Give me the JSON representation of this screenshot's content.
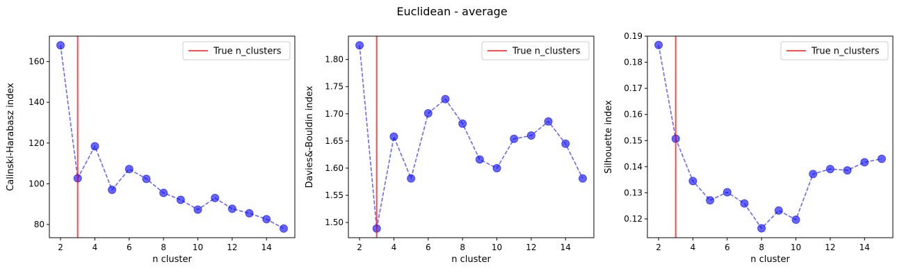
{
  "figure": {
    "suptitle": "Euclidean - average"
  },
  "colors": {
    "series": "#0000ff",
    "truth": "#ff0000"
  },
  "chart_data": [
    {
      "type": "line",
      "xlabel": "n cluster",
      "ylabel": "Calinski-Harabasz index",
      "xlim": [
        1.35,
        15.65
      ],
      "ylim": [
        73.5,
        172.5
      ],
      "xticks": [
        2,
        4,
        6,
        8,
        10,
        12,
        14
      ],
      "yticks": [
        80,
        100,
        120,
        140,
        160
      ],
      "x": [
        2,
        3,
        4,
        5,
        6,
        7,
        8,
        9,
        10,
        11,
        12,
        13,
        14,
        15
      ],
      "values": [
        168.0,
        102.7,
        118.4,
        97.0,
        107.2,
        102.4,
        95.5,
        92.1,
        87.3,
        93.0,
        87.7,
        85.5,
        82.6,
        78.0
      ],
      "vline": {
        "x": 3,
        "label": "True n_clusters"
      },
      "legend": "top-right",
      "grid": false
    },
    {
      "type": "line",
      "xlabel": "n cluster",
      "ylabel": "Davies&-Bouldin index",
      "xlim": [
        1.35,
        15.65
      ],
      "ylim": [
        1.472,
        1.843
      ],
      "xticks": [
        2,
        4,
        6,
        8,
        10,
        12,
        14
      ],
      "yticks": [
        1.5,
        1.55,
        1.6,
        1.65,
        1.7,
        1.75,
        1.8
      ],
      "x": [
        2,
        3,
        4,
        5,
        6,
        7,
        8,
        9,
        10,
        11,
        12,
        13,
        14,
        15
      ],
      "values": [
        1.826,
        1.489,
        1.658,
        1.581,
        1.701,
        1.727,
        1.682,
        1.616,
        1.6,
        1.654,
        1.66,
        1.686,
        1.645,
        1.581
      ],
      "vline": {
        "x": 3,
        "label": "True n_clusters"
      },
      "legend": "top-right",
      "grid": false
    },
    {
      "type": "line",
      "xlabel": "n cluster",
      "ylabel": "Silhouette index",
      "xlim": [
        1.35,
        15.65
      ],
      "ylim": [
        0.1128,
        0.19
      ],
      "xticks": [
        2,
        4,
        6,
        8,
        10,
        12,
        14
      ],
      "yticks": [
        0.12,
        0.13,
        0.14,
        0.15,
        0.16,
        0.17,
        0.18,
        0.19
      ],
      "x": [
        2,
        3,
        4,
        5,
        6,
        7,
        8,
        9,
        10,
        11,
        12,
        13,
        14,
        15
      ],
      "values": [
        0.1866,
        0.1507,
        0.1345,
        0.1271,
        0.1302,
        0.1259,
        0.1164,
        0.1232,
        0.1197,
        0.1372,
        0.1391,
        0.1386,
        0.1417,
        0.143
      ],
      "vline": {
        "x": 3,
        "label": "True n_clusters"
      },
      "legend": "top-right",
      "grid": false
    }
  ]
}
